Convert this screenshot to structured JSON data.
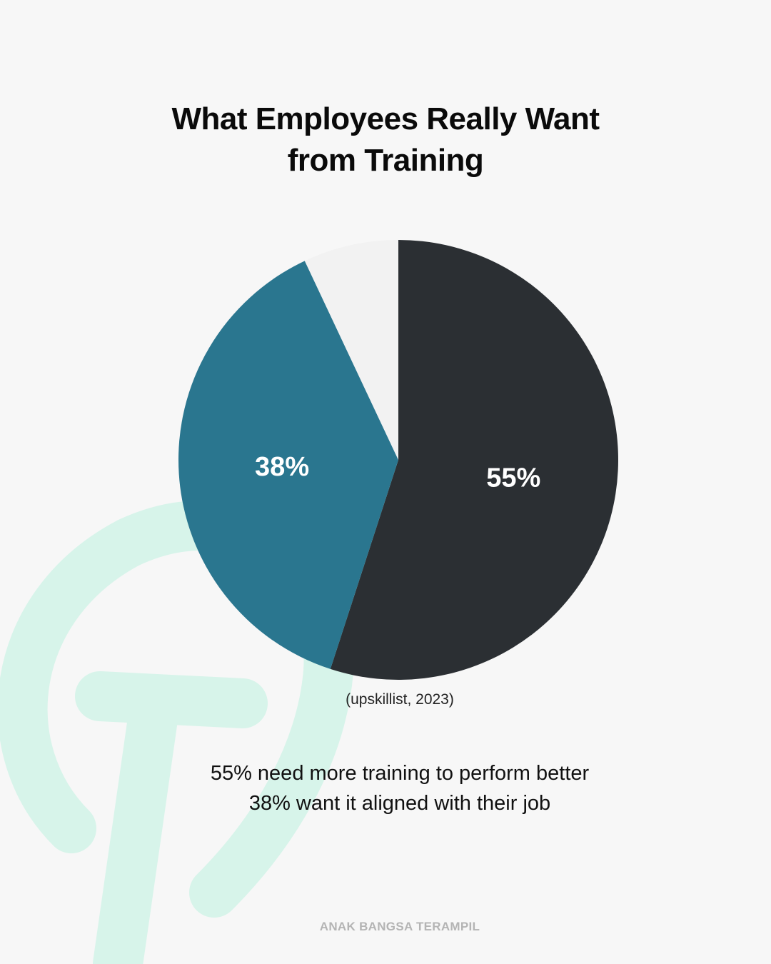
{
  "title": {
    "line1": "What Employees Really Want",
    "line2": "from Training"
  },
  "chart_data": {
    "type": "pie",
    "slices": [
      {
        "value": 55,
        "label": "55%",
        "color": "#2b2f33"
      },
      {
        "value": 38,
        "label": "38%",
        "color": "#2a768f"
      },
      {
        "value": 7,
        "label": "",
        "color": "#f2f2f2"
      }
    ]
  },
  "source": "(upskillist, 2023)",
  "summary": {
    "line1": "55% need more training to perform better",
    "line2": "38% want it aligned with their job"
  },
  "footer": "ANAK BANGSA TERAMPIL",
  "colors": {
    "background": "#f7f7f7",
    "watermark": "#d6f5ea"
  },
  "watermark_icon": "logo-watermark-icon"
}
